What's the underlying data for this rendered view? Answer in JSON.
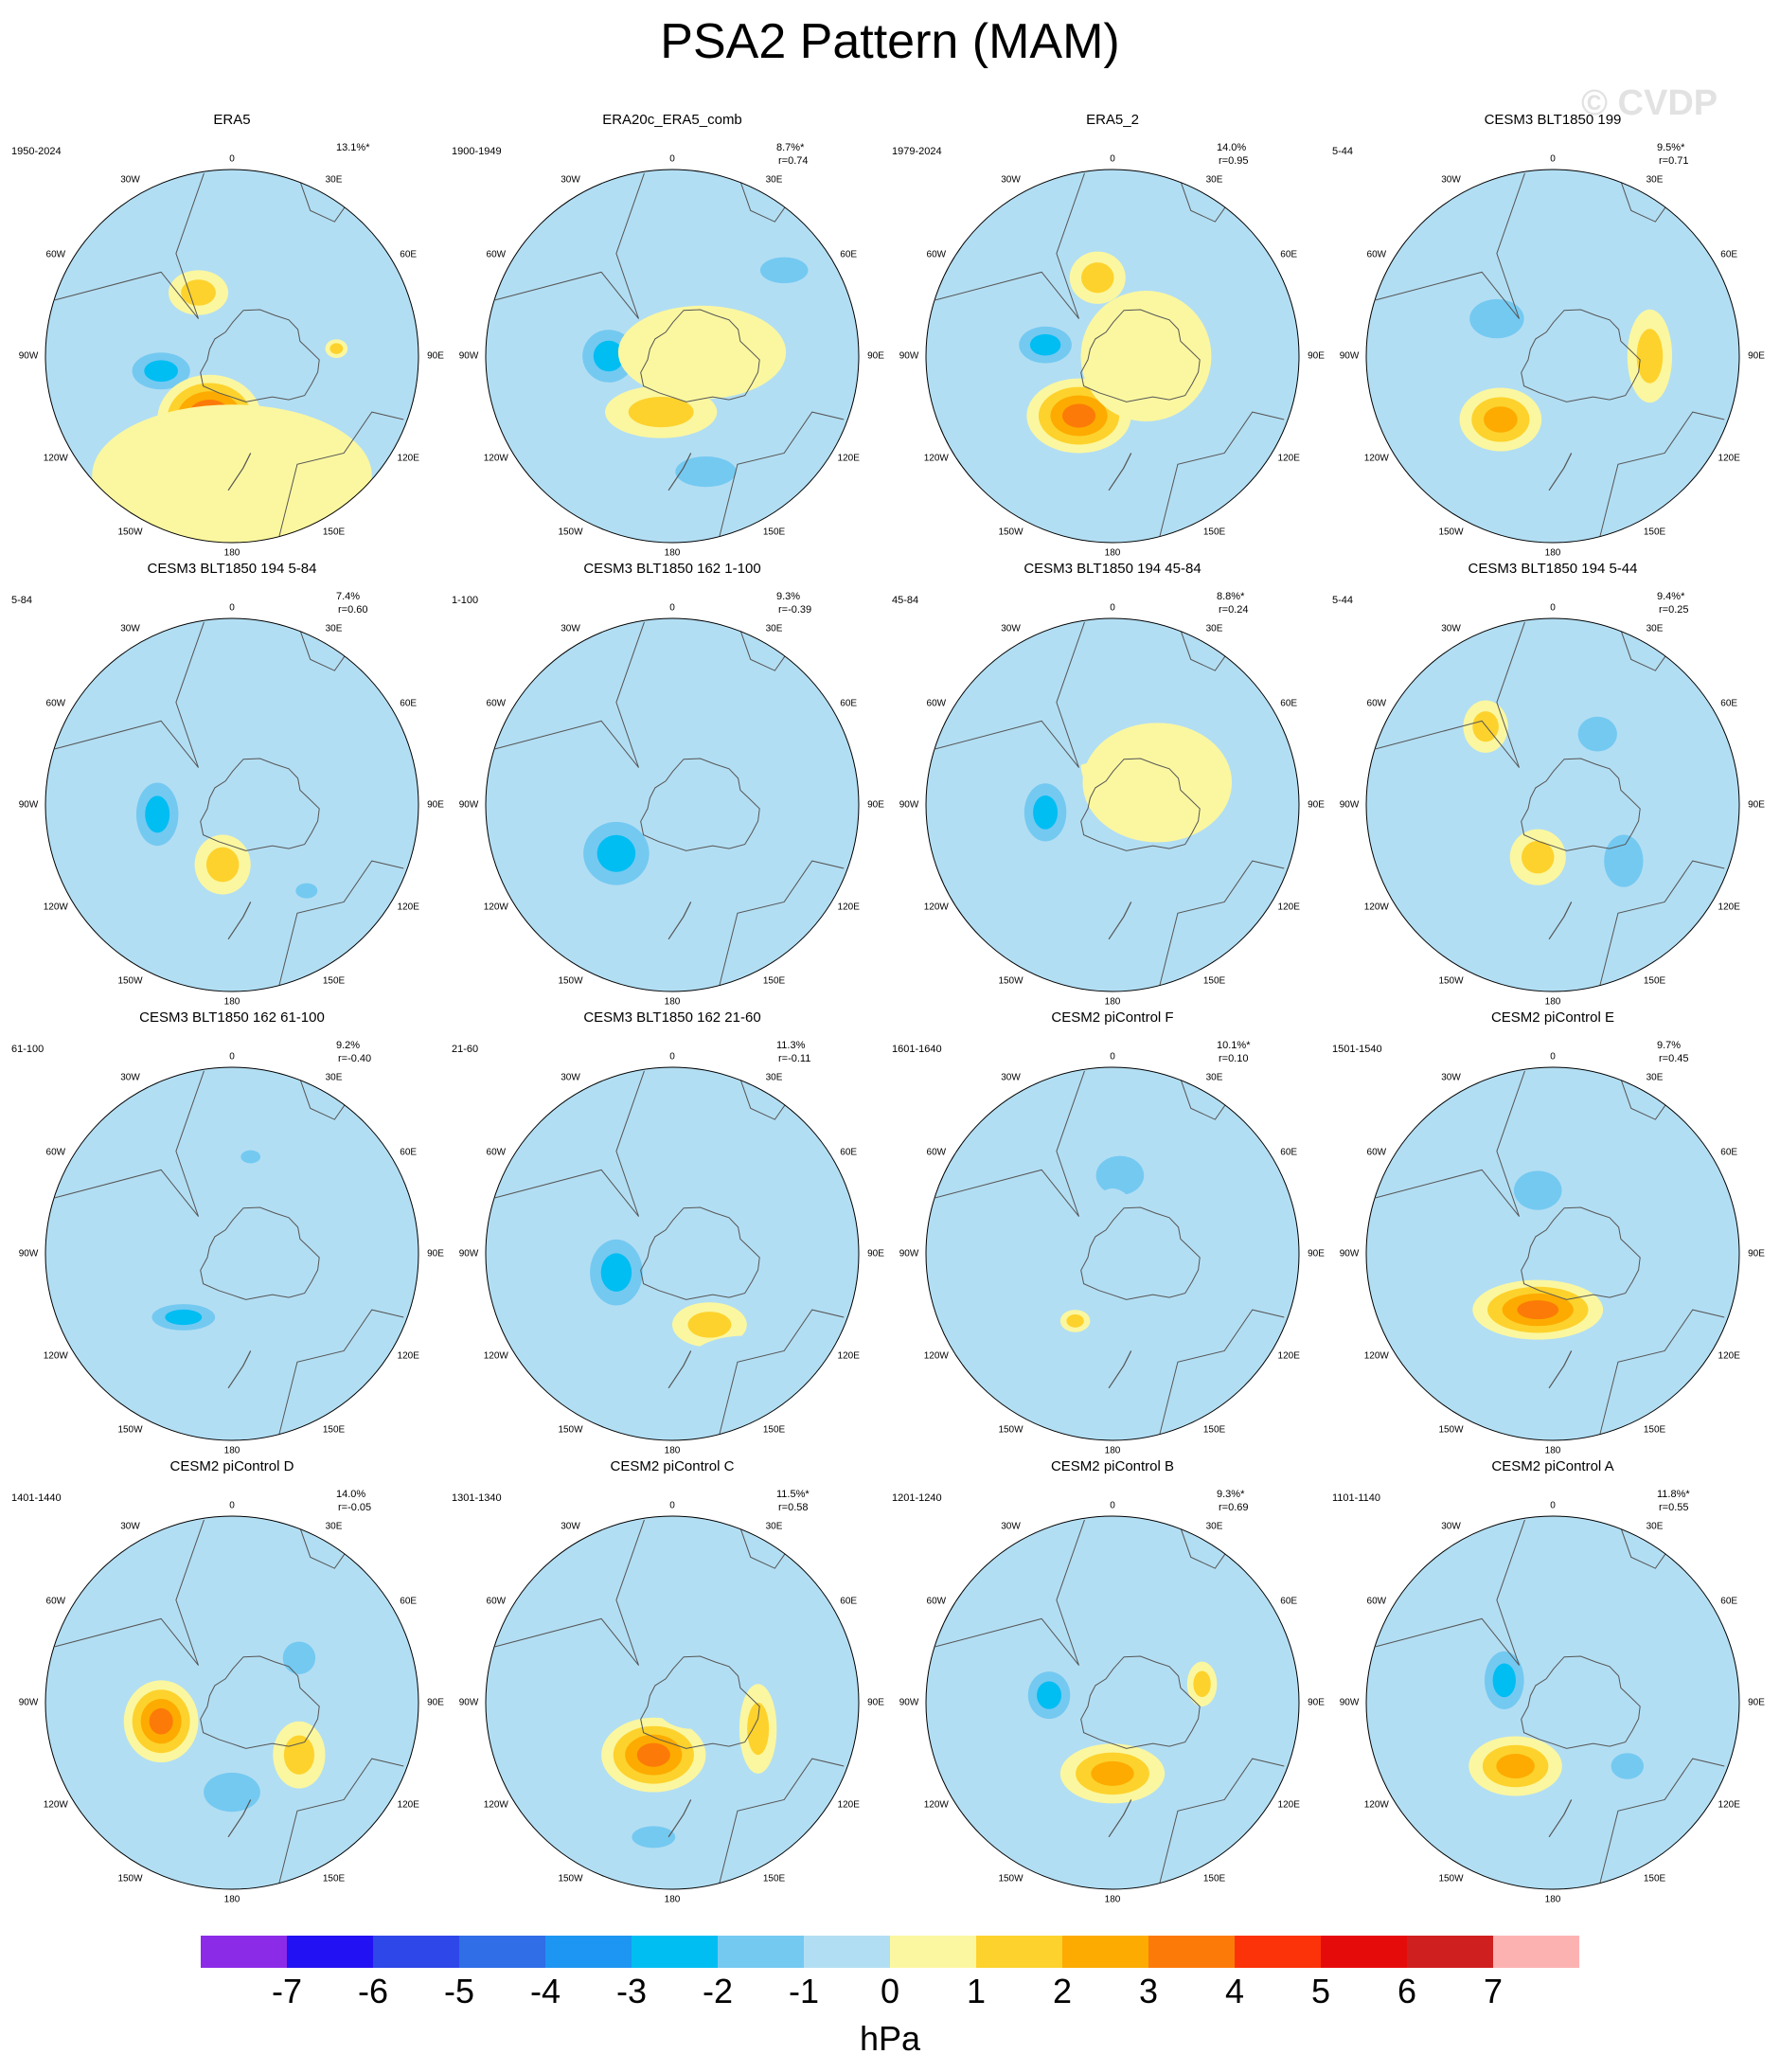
{
  "title": "PSA2 Pattern (MAM)",
  "watermark": "© CVDP",
  "lon_labels": [
    "0",
    "30E",
    "60E",
    "90E",
    "120E",
    "150E",
    "180",
    "150W",
    "120W",
    "90W",
    "60W",
    "30W"
  ],
  "chart_data": {
    "type": "map",
    "projection": "south-polar-stereographic",
    "units": "hPa",
    "colorbar": {
      "levels": [
        -7,
        -6,
        -5,
        -4,
        -3,
        -2,
        -1,
        0,
        1,
        2,
        3,
        4,
        5,
        6,
        7
      ],
      "colors": [
        "#8b2be8",
        "#2211f2",
        "#2e47e8",
        "#2f6ee6",
        "#1d95f2",
        "#00bdf2",
        "#74c9f1",
        "#b2def3",
        "#fbf7a0",
        "#fdd22d",
        "#fdab00",
        "#fc7a08",
        "#fc3208",
        "#e60b0b",
        "#cf1f1f",
        "#fdb2b2"
      ]
    },
    "panels": [
      {
        "name": "ERA5",
        "years": "1950-2024",
        "pct": "13.1%*",
        "r": "",
        "features": [
          {
            "x": -0.38,
            "y": 0.08,
            "rx": 0.22,
            "ry": 0.14,
            "v": -3
          },
          {
            "x": -0.18,
            "y": -0.34,
            "rx": 0.16,
            "ry": 0.12,
            "v": 2
          },
          {
            "x": 0.56,
            "y": -0.04,
            "rx": 0.06,
            "ry": 0.05,
            "v": 2
          },
          {
            "x": -0.12,
            "y": 0.34,
            "rx": 0.28,
            "ry": 0.24,
            "v": 5
          },
          {
            "x": 0.34,
            "y": 0.38,
            "rx": 0.12,
            "ry": 0.12,
            "v": -2
          },
          {
            "x": 0.0,
            "y": 0.64,
            "rx": 0.75,
            "ry": 0.38,
            "v": 0
          }
        ]
      },
      {
        "name": "ERA20c_ERA5_comb",
        "years": "1900-1949",
        "pct": "8.7%*",
        "r": "r=0.74",
        "features": [
          {
            "x": -0.34,
            "y": 0.0,
            "rx": 0.2,
            "ry": 0.2,
            "v": -3
          },
          {
            "x": 0.6,
            "y": -0.46,
            "rx": 0.22,
            "ry": 0.12,
            "v": -2
          },
          {
            "x": -0.06,
            "y": 0.3,
            "rx": 0.3,
            "ry": 0.14,
            "v": 2
          },
          {
            "x": 0.18,
            "y": 0.62,
            "rx": 0.28,
            "ry": 0.14,
            "v": -2
          },
          {
            "x": 0.16,
            "y": -0.02,
            "rx": 0.45,
            "ry": 0.25,
            "v": 0
          }
        ]
      },
      {
        "name": "ERA5_2",
        "years": "1979-2024",
        "pct": "14.0%",
        "r": "r=0.95",
        "features": [
          {
            "x": -0.36,
            "y": -0.06,
            "rx": 0.2,
            "ry": 0.14,
            "v": -3
          },
          {
            "x": -0.08,
            "y": -0.42,
            "rx": 0.15,
            "ry": 0.14,
            "v": 2
          },
          {
            "x": -0.18,
            "y": 0.32,
            "rx": 0.28,
            "ry": 0.2,
            "v": 4
          },
          {
            "x": 0.3,
            "y": 0.62,
            "rx": 0.15,
            "ry": 0.08,
            "v": -1
          },
          {
            "x": 0.18,
            "y": 0.0,
            "rx": 0.35,
            "ry": 0.35,
            "v": 0
          }
        ]
      },
      {
        "name": "CESM3 BLT1850 199",
        "years": "5-44",
        "pct": "9.5%*",
        "r": "r=0.71",
        "features": [
          {
            "x": -0.3,
            "y": -0.2,
            "rx": 0.25,
            "ry": 0.18,
            "v": -2
          },
          {
            "x": -0.28,
            "y": 0.34,
            "rx": 0.22,
            "ry": 0.17,
            "v": 3
          },
          {
            "x": 0.52,
            "y": 0.0,
            "rx": 0.12,
            "ry": 0.25,
            "v": 2
          },
          {
            "x": 0.24,
            "y": 0.52,
            "rx": 0.18,
            "ry": 0.22,
            "v": -1
          },
          {
            "x": -0.2,
            "y": 0.7,
            "rx": 0.2,
            "ry": 0.12,
            "v": -1
          }
        ]
      },
      {
        "name": "CESM3 BLT1850 194 5-84",
        "years": "5-84",
        "pct": "7.4%",
        "r": "r=0.60",
        "features": [
          {
            "x": -0.4,
            "y": 0.05,
            "rx": 0.16,
            "ry": 0.24,
            "v": -3
          },
          {
            "x": -0.05,
            "y": 0.32,
            "rx": 0.15,
            "ry": 0.16,
            "v": 2
          },
          {
            "x": 0.4,
            "y": 0.46,
            "rx": 0.1,
            "ry": 0.07,
            "v": -2
          },
          {
            "x": 0.36,
            "y": -0.3,
            "rx": 0.55,
            "ry": 0.45,
            "v": -1
          }
        ]
      },
      {
        "name": "CESM3 BLT1850 162 1-100",
        "years": "1-100",
        "pct": "9.3%",
        "r": "r=-0.39",
        "features": [
          {
            "x": -0.3,
            "y": 0.26,
            "rx": 0.25,
            "ry": 0.24,
            "v": -3
          },
          {
            "x": -0.24,
            "y": -0.52,
            "rx": 0.1,
            "ry": 0.06,
            "v": -1
          },
          {
            "x": 0.42,
            "y": -0.26,
            "rx": 0.06,
            "ry": 0.06,
            "v": 2
          },
          {
            "x": 0.3,
            "y": 0.0,
            "rx": 0.45,
            "ry": 0.52,
            "v": -1
          }
        ]
      },
      {
        "name": "CESM3 BLT1850 194 45-84",
        "years": "45-84",
        "pct": "8.8%*",
        "r": "r=0.24",
        "features": [
          {
            "x": -0.36,
            "y": 0.04,
            "rx": 0.16,
            "ry": 0.22,
            "v": -3
          },
          {
            "x": -0.08,
            "y": -0.22,
            "rx": 0.09,
            "ry": 0.14,
            "v": 2
          },
          {
            "x": 0.3,
            "y": 0.6,
            "rx": 0.5,
            "ry": 0.22,
            "v": -1
          },
          {
            "x": -0.3,
            "y": -0.4,
            "rx": 0.34,
            "ry": 0.2,
            "v": -1
          },
          {
            "x": 0.24,
            "y": -0.12,
            "rx": 0.4,
            "ry": 0.32,
            "v": 0
          }
        ]
      },
      {
        "name": "CESM3 BLT1850 194 5-44",
        "years": "5-44",
        "pct": "9.4%*",
        "r": "r=0.25",
        "features": [
          {
            "x": 0.24,
            "y": -0.38,
            "rx": 0.18,
            "ry": 0.16,
            "v": -2
          },
          {
            "x": -0.36,
            "y": -0.42,
            "rx": 0.12,
            "ry": 0.14,
            "v": 2
          },
          {
            "x": 0.38,
            "y": 0.3,
            "rx": 0.18,
            "ry": 0.24,
            "v": -2
          },
          {
            "x": -0.4,
            "y": 0.38,
            "rx": 0.2,
            "ry": 0.16,
            "v": -1
          },
          {
            "x": -0.08,
            "y": 0.28,
            "rx": 0.15,
            "ry": 0.15,
            "v": 2
          }
        ]
      },
      {
        "name": "CESM3 BLT1850 162 61-100",
        "years": "61-100",
        "pct": "9.2%",
        "r": "r=-0.40",
        "features": [
          {
            "x": -0.16,
            "y": 0.26,
            "rx": 0.5,
            "ry": 0.16,
            "v": -1
          },
          {
            "x": -0.26,
            "y": 0.34,
            "rx": 0.24,
            "ry": 0.1,
            "v": -3
          },
          {
            "x": 0.05,
            "y": -0.52,
            "rx": 0.16,
            "ry": 0.14,
            "v": -1
          },
          {
            "x": 0.1,
            "y": -0.52,
            "rx": 0.09,
            "ry": 0.06,
            "v": -2
          },
          {
            "x": 0.44,
            "y": 0.2,
            "rx": 0.2,
            "ry": 0.1,
            "v": -1
          }
        ]
      },
      {
        "name": "CESM3 BLT1850 162 21-60",
        "years": "21-60",
        "pct": "11.3%",
        "r": "r=-0.11",
        "features": [
          {
            "x": -0.3,
            "y": 0.1,
            "rx": 0.2,
            "ry": 0.25,
            "v": -3
          },
          {
            "x": 0.2,
            "y": 0.38,
            "rx": 0.2,
            "ry": 0.12,
            "v": 2
          },
          {
            "x": -0.36,
            "y": -0.32,
            "rx": 0.38,
            "ry": 0.2,
            "v": -1
          },
          {
            "x": 0.38,
            "y": 0.62,
            "rx": 0.32,
            "ry": 0.18,
            "v": -1
          }
        ]
      },
      {
        "name": "CESM2 piControl F",
        "years": "1601-1640",
        "pct": "10.1%*",
        "r": "r=0.10",
        "features": [
          {
            "x": 0.04,
            "y": -0.42,
            "rx": 0.22,
            "ry": 0.18,
            "v": -2
          },
          {
            "x": 0.0,
            "y": 0.1,
            "rx": 0.2,
            "ry": 0.45,
            "v": -1
          },
          {
            "x": -0.6,
            "y": 0.08,
            "rx": 0.18,
            "ry": 0.24,
            "v": -1
          },
          {
            "x": -0.2,
            "y": 0.36,
            "rx": 0.08,
            "ry": 0.06,
            "v": 2
          }
        ]
      },
      {
        "name": "CESM2 piControl E",
        "years": "1501-1540",
        "pct": "9.7%",
        "r": "r=0.45",
        "features": [
          {
            "x": -0.1,
            "y": -0.1,
            "rx": 0.45,
            "ry": 0.4,
            "v": -1
          },
          {
            "x": -0.08,
            "y": -0.34,
            "rx": 0.22,
            "ry": 0.18,
            "v": -2
          },
          {
            "x": -0.08,
            "y": 0.3,
            "rx": 0.35,
            "ry": 0.16,
            "v": 4
          },
          {
            "x": -0.2,
            "y": 0.64,
            "rx": 0.18,
            "ry": 0.1,
            "v": -1
          },
          {
            "x": 0.55,
            "y": 0.5,
            "rx": 0.12,
            "ry": 0.08,
            "v": -1
          }
        ]
      },
      {
        "name": "CESM2 piControl D",
        "years": "1401-1440",
        "pct": "14.0%",
        "r": "r=-0.05",
        "features": [
          {
            "x": -0.38,
            "y": 0.1,
            "rx": 0.2,
            "ry": 0.22,
            "v": 4
          },
          {
            "x": -0.26,
            "y": -0.36,
            "rx": 0.14,
            "ry": 0.11,
            "v": -1
          },
          {
            "x": 0.36,
            "y": -0.24,
            "rx": 0.15,
            "ry": 0.15,
            "v": -2
          },
          {
            "x": 0.36,
            "y": 0.28,
            "rx": 0.14,
            "ry": 0.18,
            "v": 2
          },
          {
            "x": 0.0,
            "y": 0.48,
            "rx": 0.26,
            "ry": 0.18,
            "v": -2
          }
        ]
      },
      {
        "name": "CESM2 piControl C",
        "years": "1301-1340",
        "pct": "11.5%*",
        "r": "r=0.58",
        "features": [
          {
            "x": -0.1,
            "y": 0.28,
            "rx": 0.28,
            "ry": 0.2,
            "v": 4
          },
          {
            "x": 0.46,
            "y": 0.14,
            "rx": 0.1,
            "ry": 0.24,
            "v": 2
          },
          {
            "x": 0.1,
            "y": -0.02,
            "rx": 0.2,
            "ry": 0.16,
            "v": -1
          },
          {
            "x": -0.1,
            "y": 0.72,
            "rx": 0.2,
            "ry": 0.1,
            "v": -2
          },
          {
            "x": -0.3,
            "y": -0.5,
            "rx": 0.45,
            "ry": 0.3,
            "v": -1
          }
        ]
      },
      {
        "name": "CESM2 piControl B",
        "years": "1201-1240",
        "pct": "9.3%*",
        "r": "r=0.69",
        "features": [
          {
            "x": -0.34,
            "y": -0.04,
            "rx": 0.16,
            "ry": 0.18,
            "v": -3
          },
          {
            "x": 0.0,
            "y": 0.38,
            "rx": 0.28,
            "ry": 0.16,
            "v": 3
          },
          {
            "x": 0.48,
            "y": -0.1,
            "rx": 0.08,
            "ry": 0.12,
            "v": 2
          },
          {
            "x": 0.1,
            "y": -0.5,
            "rx": 0.32,
            "ry": 0.18,
            "v": -1
          },
          {
            "x": -0.16,
            "y": 0.7,
            "rx": 0.45,
            "ry": 0.14,
            "v": -1
          }
        ]
      },
      {
        "name": "CESM2 piControl A",
        "years": "1101-1140",
        "pct": "11.8%*",
        "r": "r=0.55",
        "features": [
          {
            "x": -0.16,
            "y": -0.22,
            "rx": 0.4,
            "ry": 0.24,
            "v": -1
          },
          {
            "x": -0.26,
            "y": -0.12,
            "rx": 0.15,
            "ry": 0.22,
            "v": -3
          },
          {
            "x": -0.2,
            "y": 0.34,
            "rx": 0.25,
            "ry": 0.16,
            "v": 3
          },
          {
            "x": 0.4,
            "y": 0.34,
            "rx": 0.15,
            "ry": 0.12,
            "v": -2
          },
          {
            "x": 0.0,
            "y": 0.75,
            "rx": 0.7,
            "ry": 0.25,
            "v": -1
          }
        ]
      }
    ]
  }
}
